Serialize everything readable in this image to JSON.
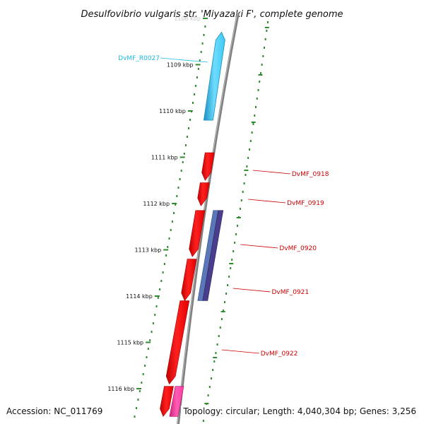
{
  "title": "Desulfovibrio vulgaris str. 'Miyazaki F', complete genome",
  "accession": "Accession: NC_011769",
  "topology": "Topology: circular; Length: 4,040,304 bp; Genes: 3,256",
  "colors": {
    "background": "#ffffff",
    "backbone": "#808080",
    "ruler_ticks": "#2e8b2e",
    "gene_cds": "#ff0000",
    "gene_rna": "#3ec8f0",
    "gene_blue": "#5a78b8",
    "gene_purple": "#4a3e8c",
    "gene_pink": "#ff3ca0",
    "label_cds": "#cc0000",
    "label_rna": "#20b8e0"
  },
  "ruler": {
    "unit": "kbp",
    "ticks": [
      {
        "label": "1108 kbp"
      },
      {
        "label": "1109 kbp"
      },
      {
        "label": "1110 kbp"
      },
      {
        "label": "1111 kbp"
      },
      {
        "label": "1112 kbp"
      },
      {
        "label": "1113 kbp"
      },
      {
        "label": "1114 kbp"
      },
      {
        "label": "1115 kbp"
      },
      {
        "label": "1116 kbp"
      }
    ]
  },
  "genes": [
    {
      "name": "DvMF_R0027",
      "type": "rna",
      "strand": "+",
      "start_kbp": 1108.3,
      "end_kbp": 1110.2
    },
    {
      "name": "DvMF_0918",
      "type": "cds",
      "strand": "-",
      "start_kbp": 1110.9,
      "end_kbp": 1111.5
    },
    {
      "name": "DvMF_0919",
      "type": "cds",
      "strand": "-",
      "start_kbp": 1111.55,
      "end_kbp": 1112.05
    },
    {
      "name": "DvMF_0920",
      "type": "cds",
      "strand": "-",
      "start_kbp": 1112.15,
      "end_kbp": 1113.15
    },
    {
      "name": "DvMF_0921",
      "type": "cds",
      "strand": "-",
      "start_kbp": 1113.2,
      "end_kbp": 1114.1
    },
    {
      "name": "DvMF_0922",
      "type": "cds",
      "strand": "-",
      "start_kbp": 1114.1,
      "end_kbp": 1115.9
    },
    {
      "name": "",
      "type": "cds",
      "strand": "-",
      "start_kbp": 1115.95,
      "end_kbp": 1116.6
    }
  ],
  "features": [
    {
      "type": "blue",
      "start_kbp": 1112.15,
      "end_kbp": 1114.1
    },
    {
      "type": "purple",
      "start_kbp": 1112.15,
      "end_kbp": 1114.1
    },
    {
      "type": "pink",
      "start_kbp": 1115.95,
      "end_kbp": 1116.6
    }
  ]
}
